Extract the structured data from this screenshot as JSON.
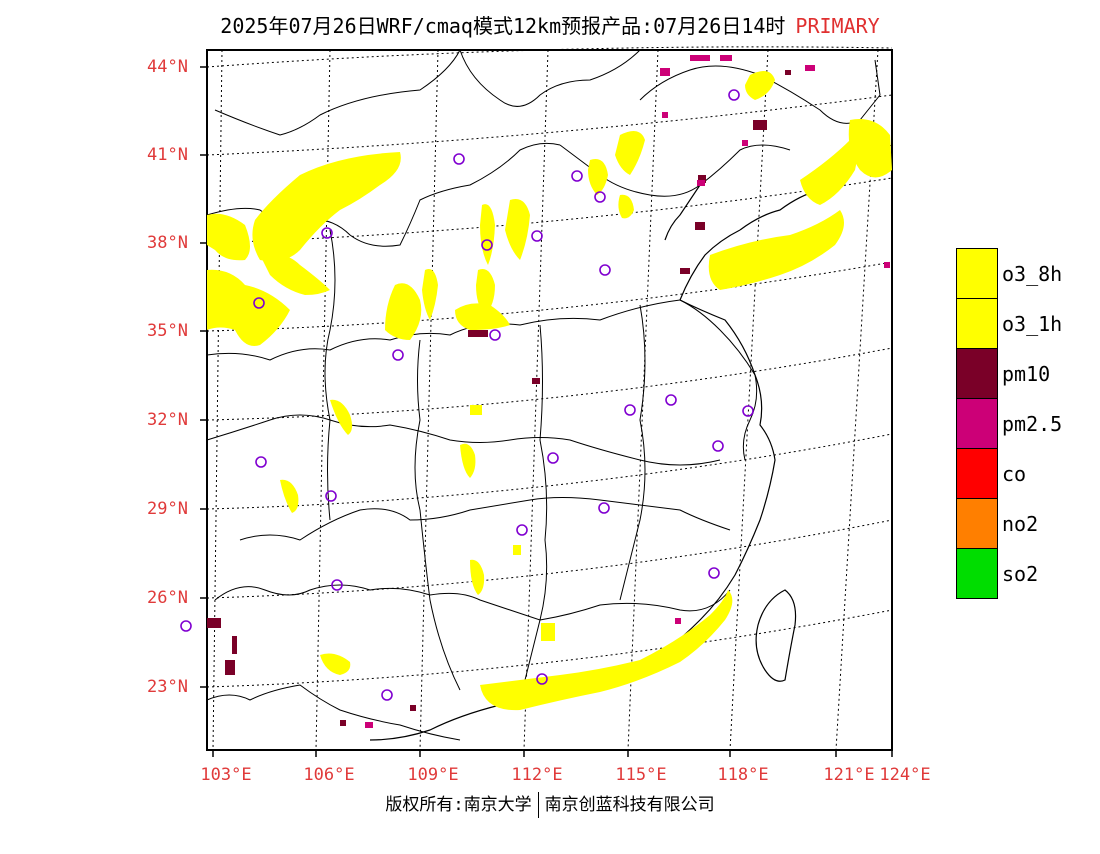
{
  "header": {
    "title": "2025年07月26日WRF/cmaq模式12km预报产品:07月26日14时",
    "primary_label": "PRIMARY"
  },
  "axes": {
    "lat_labels": [
      "44°N",
      "41°N",
      "38°N",
      "35°N",
      "32°N",
      "29°N",
      "26°N",
      "23°N"
    ],
    "lon_labels": [
      "103°E",
      "106°E",
      "109°E",
      "112°E",
      "115°E",
      "118°E",
      "121°E",
      "124°E"
    ]
  },
  "legend": {
    "items": [
      {
        "label": "o3_8h",
        "color": "#ffff00"
      },
      {
        "label": "o3_1h",
        "color": "#ffff00"
      },
      {
        "label": "pm10",
        "color": "#7a0028"
      },
      {
        "label": "pm2.5",
        "color": "#cc0077"
      },
      {
        "label": "co",
        "color": "#ff0000"
      },
      {
        "label": "no2",
        "color": "#ff7f00"
      },
      {
        "label": "so2",
        "color": "#00dd00"
      }
    ]
  },
  "map": {
    "station_marker_color": "#8000d0",
    "coast_color": "#000000"
  },
  "footer": {
    "left": "版权所有:南京大学",
    "right": "南京创蓝科技有限公司"
  }
}
